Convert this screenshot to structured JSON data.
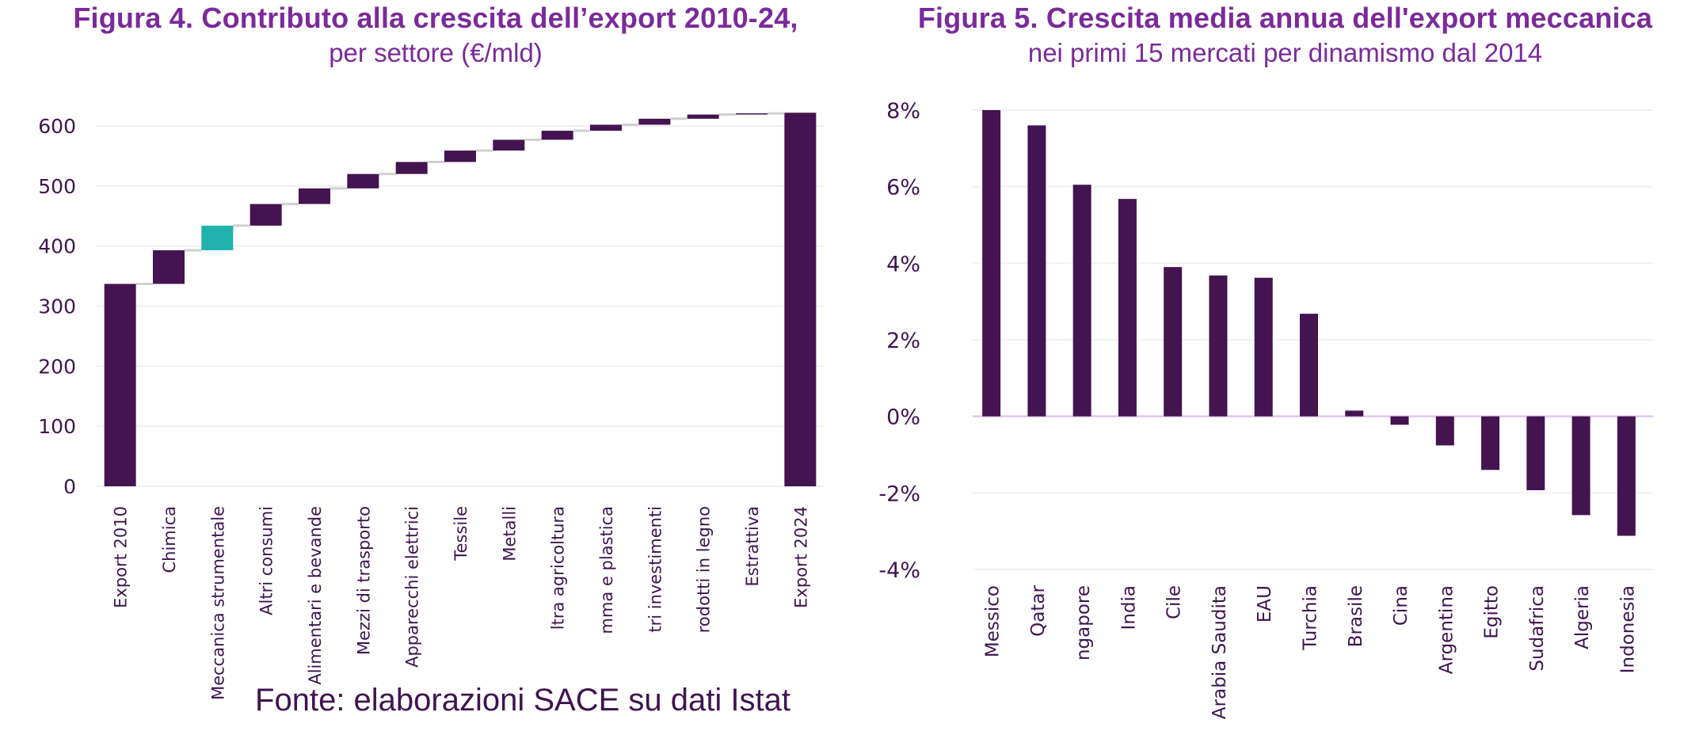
{
  "colors": {
    "title": "#7b2a9b",
    "bar": "#43144f",
    "highlight": "#22b2ae",
    "grid": "#f1f1f1",
    "connector": "#d0d0d0",
    "zero_line": "#e3c6ef",
    "text": "#3f1450"
  },
  "source": "Fonte: elaborazioni SACE su dati Istat",
  "chart_data": [
    {
      "type": "bar",
      "subtype": "waterfall",
      "title": "Figura 4. Contributo alla crescita dell’export 2010-24,",
      "subtitle": "per settore (€/mld)",
      "xlabel": "",
      "ylabel": "",
      "ylim": [
        0,
        600
      ],
      "yticks": [
        0,
        100,
        200,
        300,
        400,
        500,
        600
      ],
      "ytick_labels": [
        "0",
        "100",
        "200",
        "300",
        "400",
        "500",
        "600"
      ],
      "grid": true,
      "legend": "none",
      "highlight_category": "Meccanica strumentale",
      "categories": [
        "Export 2010",
        "Chimica",
        "Meccanica strumentale",
        "Altri consumi",
        "Alimentari e bevande",
        "Mezzi di trasporto",
        "Apparecchi elettrici",
        "Tessile",
        "Metalli",
        "ltra agricoltura",
        "mma e plastica",
        "tri investimenti",
        "rodotti in legno",
        "Estrattiva",
        "Export 2024"
      ],
      "kinds": [
        "total",
        "delta",
        "delta",
        "delta",
        "delta",
        "delta",
        "delta",
        "delta",
        "delta",
        "delta",
        "delta",
        "delta",
        "delta",
        "delta",
        "total"
      ],
      "values": [
        337,
        56,
        41,
        36,
        26,
        24,
        20,
        19,
        18,
        15,
        10,
        10,
        7,
        2,
        622
      ]
    },
    {
      "type": "bar",
      "title": "Figura 5. Crescita media annua dell'export meccanica",
      "subtitle": "nei primi 15 mercati per dinamismo dal 2014",
      "xlabel": "",
      "ylabel": "",
      "ylim": [
        -4,
        8
      ],
      "yticks": [
        -4,
        -2,
        0,
        2,
        4,
        6,
        8
      ],
      "ytick_labels": [
        "-4%",
        "-2%",
        "0%",
        "2%",
        "4%",
        "6%",
        "8%"
      ],
      "grid": true,
      "legend": "none",
      "unit": "%",
      "categories": [
        "Μessico",
        "Qatar",
        "ngapore",
        "India",
        "Cile",
        "Arabia Saudita",
        "EAU",
        "Turchia",
        "Brasile",
        "Cina",
        "Argentina",
        "Egitto",
        "Sudafrica",
        "Algeria",
        "Indonesia"
      ],
      "values": [
        8.0,
        7.6,
        6.05,
        5.68,
        3.9,
        3.68,
        3.62,
        2.68,
        0.15,
        -0.22,
        -0.76,
        -1.4,
        -1.93,
        -2.58,
        -3.12
      ]
    }
  ]
}
